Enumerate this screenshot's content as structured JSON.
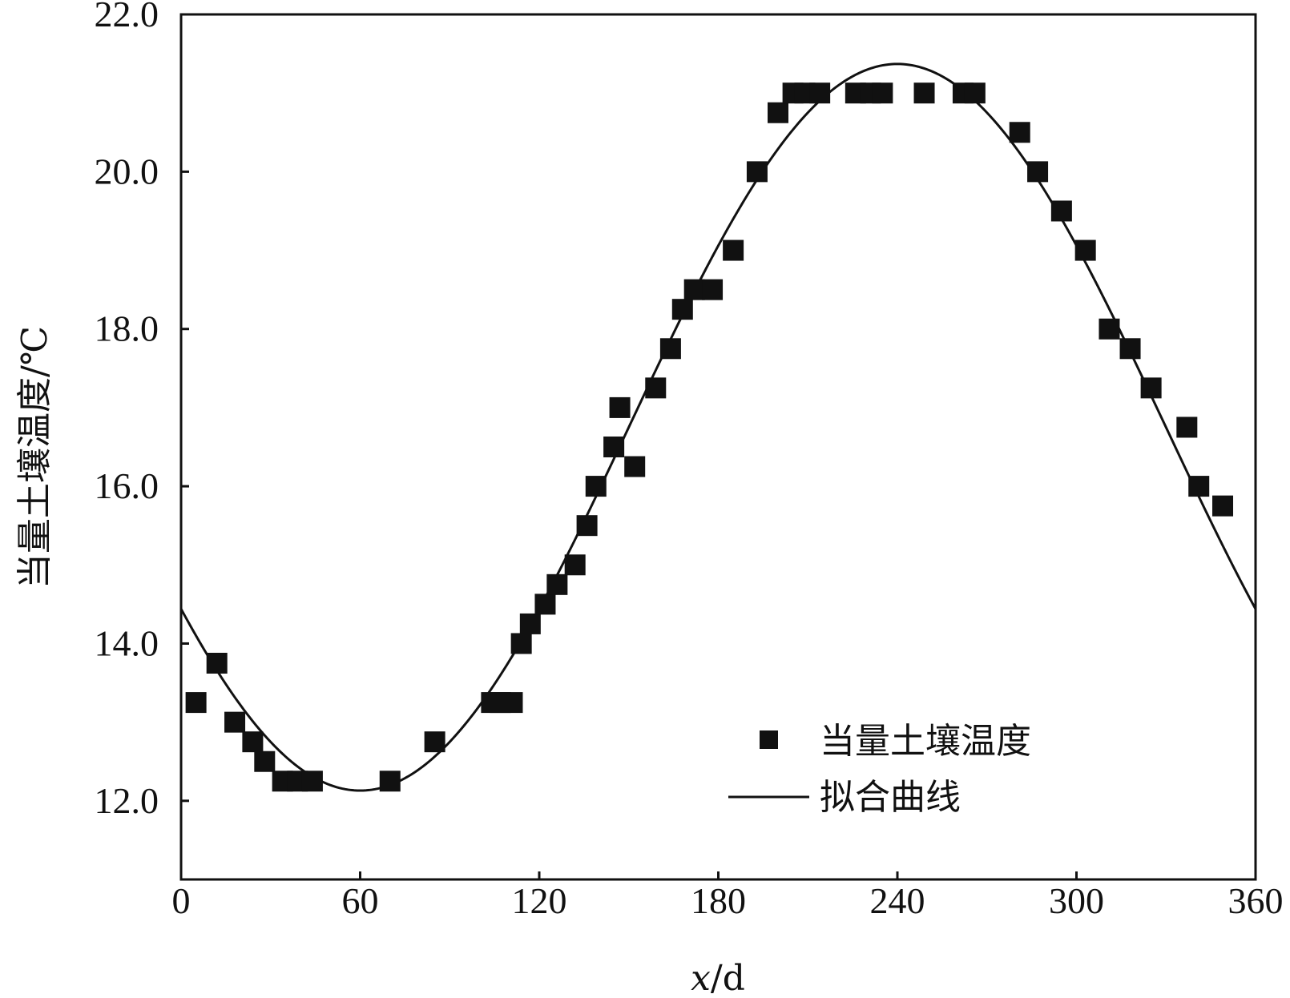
{
  "chart_data": {
    "type": "scatter",
    "xlabel_var": "x",
    "xlabel_unit": "/d",
    "ylabel": "当量土壤温度/℃",
    "xlim": [
      0,
      360
    ],
    "ylim": [
      11.0,
      22.0
    ],
    "xticks": [
      0,
      60,
      120,
      180,
      240,
      300,
      360
    ],
    "yticks": [
      12.0,
      14.0,
      16.0,
      18.0,
      20.0,
      22.0
    ],
    "xtick_labels": [
      "0",
      "60",
      "120",
      "180",
      "240",
      "300",
      "360"
    ],
    "ytick_labels": [
      "12.0",
      "14.0",
      "16.0",
      "18.0",
      "20.0",
      "22.0"
    ],
    "grid": false,
    "legend_position": "bottom-right",
    "series": [
      {
        "name": "当量土壤温度",
        "kind": "scatter",
        "marker": "square",
        "points": [
          [
            5,
            13.25
          ],
          [
            12,
            13.75
          ],
          [
            18,
            13.0
          ],
          [
            24,
            12.75
          ],
          [
            28,
            12.5
          ],
          [
            34,
            12.25
          ],
          [
            39,
            12.25
          ],
          [
            44,
            12.25
          ],
          [
            70,
            12.25
          ],
          [
            85,
            12.75
          ],
          [
            104,
            13.25
          ],
          [
            107,
            13.25
          ],
          [
            111,
            13.25
          ],
          [
            114,
            14.0
          ],
          [
            117,
            14.25
          ],
          [
            122,
            14.5
          ],
          [
            126,
            14.75
          ],
          [
            132,
            15.0
          ],
          [
            136,
            15.5
          ],
          [
            139,
            16.0
          ],
          [
            145,
            16.5
          ],
          [
            147,
            17.0
          ],
          [
            152,
            16.25
          ],
          [
            159,
            17.25
          ],
          [
            164,
            17.75
          ],
          [
            168,
            18.25
          ],
          [
            172,
            18.5
          ],
          [
            178,
            18.5
          ],
          [
            185,
            19.0
          ],
          [
            193,
            20.0
          ],
          [
            200,
            20.75
          ],
          [
            205,
            21.0
          ],
          [
            209,
            21.0
          ],
          [
            214,
            21.0
          ],
          [
            226,
            21.0
          ],
          [
            231,
            21.0
          ],
          [
            235,
            21.0
          ],
          [
            249,
            21.0
          ],
          [
            262,
            21.0
          ],
          [
            266,
            21.0
          ],
          [
            281,
            20.5
          ],
          [
            287,
            20.0
          ],
          [
            295,
            19.5
          ],
          [
            303,
            19.0
          ],
          [
            311,
            18.0
          ],
          [
            318,
            17.75
          ],
          [
            325,
            17.25
          ],
          [
            337,
            16.75
          ],
          [
            341,
            16.0
          ],
          [
            349,
            15.75
          ]
        ]
      },
      {
        "name": "拟合曲线",
        "kind": "line",
        "model": "sine",
        "mean": 16.75,
        "amplitude": 4.62,
        "peak_day": 240,
        "period_days": 360
      }
    ]
  }
}
